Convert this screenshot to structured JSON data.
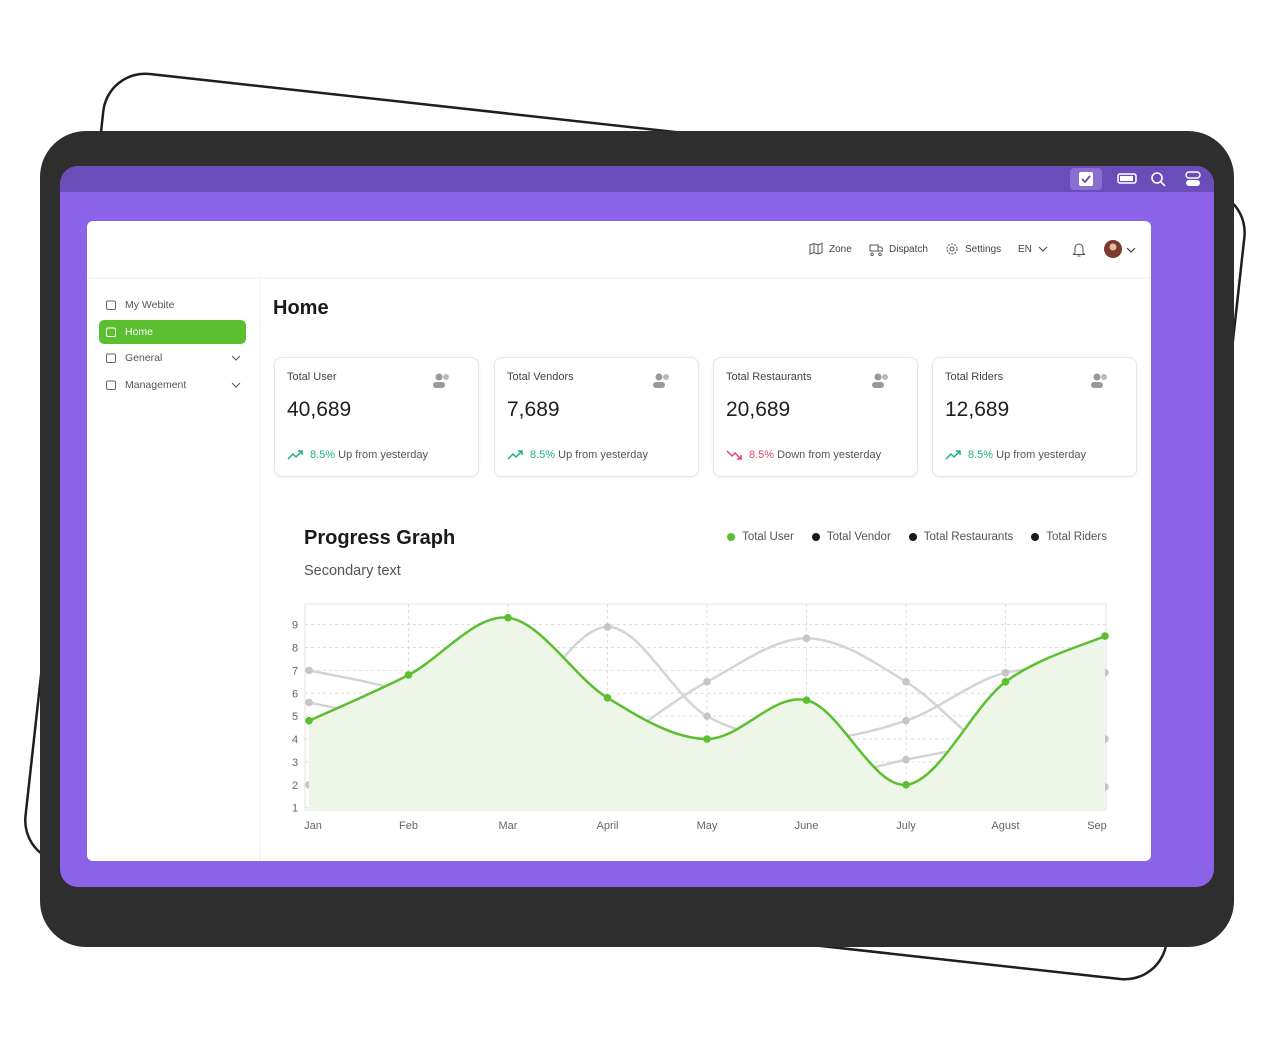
{
  "header": {
    "nav": [
      "Zone",
      "Dispatch",
      "Settings"
    ],
    "language": "EN"
  },
  "sidebar": {
    "items": [
      {
        "label": "My Webite",
        "active": false,
        "expandable": false
      },
      {
        "label": "Home",
        "active": true,
        "expandable": false
      },
      {
        "label": "General",
        "active": false,
        "expandable": true
      },
      {
        "label": "Management",
        "active": false,
        "expandable": true
      }
    ]
  },
  "page_title": "Home",
  "cards": [
    {
      "label": "Total User",
      "value": "40,689",
      "change": "8.5%",
      "note": "Up from yesterday",
      "trend": "up"
    },
    {
      "label": "Total Vendors",
      "value": "7,689",
      "change": "8.5%",
      "note": "Up from yesterday",
      "trend": "up"
    },
    {
      "label": "Total Restaurants",
      "value": "20,689",
      "change": "8.5%",
      "note": "Down from yesterday",
      "trend": "down"
    },
    {
      "label": "Total Riders",
      "value": "12,689",
      "change": "8.5%",
      "note": "Up from yesterday",
      "trend": "up"
    }
  ],
  "chart_data": {
    "type": "line",
    "title": "Progress Graph",
    "subtitle": "Secondary text",
    "categories": [
      "Jan",
      "Feb",
      "Mar",
      "April",
      "May",
      "June",
      "July",
      "Agust",
      "Sep"
    ],
    "series": [
      {
        "name": "Total User",
        "color": "#5bbf2f",
        "legend_color": "#5bbf2f",
        "fill": "#eef7e7",
        "values": [
          4.8,
          6.8,
          9.3,
          5.8,
          4.0,
          5.7,
          2.0,
          6.5,
          8.5
        ]
      },
      {
        "name": "Total Vendor",
        "color": "#d4d4d4",
        "legend_color": "#1a1a1a",
        "values": [
          7.0,
          6.0,
          4.0,
          2.0,
          1.5,
          2.0,
          3.1,
          3.8,
          4.0
        ]
      },
      {
        "name": "Total Restaurants",
        "color": "#d4d4d4",
        "legend_color": "#1a1a1a",
        "values": [
          5.6,
          4.6,
          2.8,
          3.8,
          6.5,
          8.4,
          6.5,
          3.0,
          1.9
        ]
      },
      {
        "name": "Total Riders",
        "color": "#d4d4d4",
        "legend_color": "#1a1a1a",
        "values": [
          2.0,
          3.1,
          4.9,
          8.9,
          5.0,
          4.0,
          4.8,
          6.9,
          6.9
        ]
      }
    ],
    "ylim": [
      0.9,
      9.9
    ],
    "yticks": [
      1,
      2,
      3,
      4,
      5,
      6,
      7,
      8,
      9
    ],
    "grid": true
  }
}
